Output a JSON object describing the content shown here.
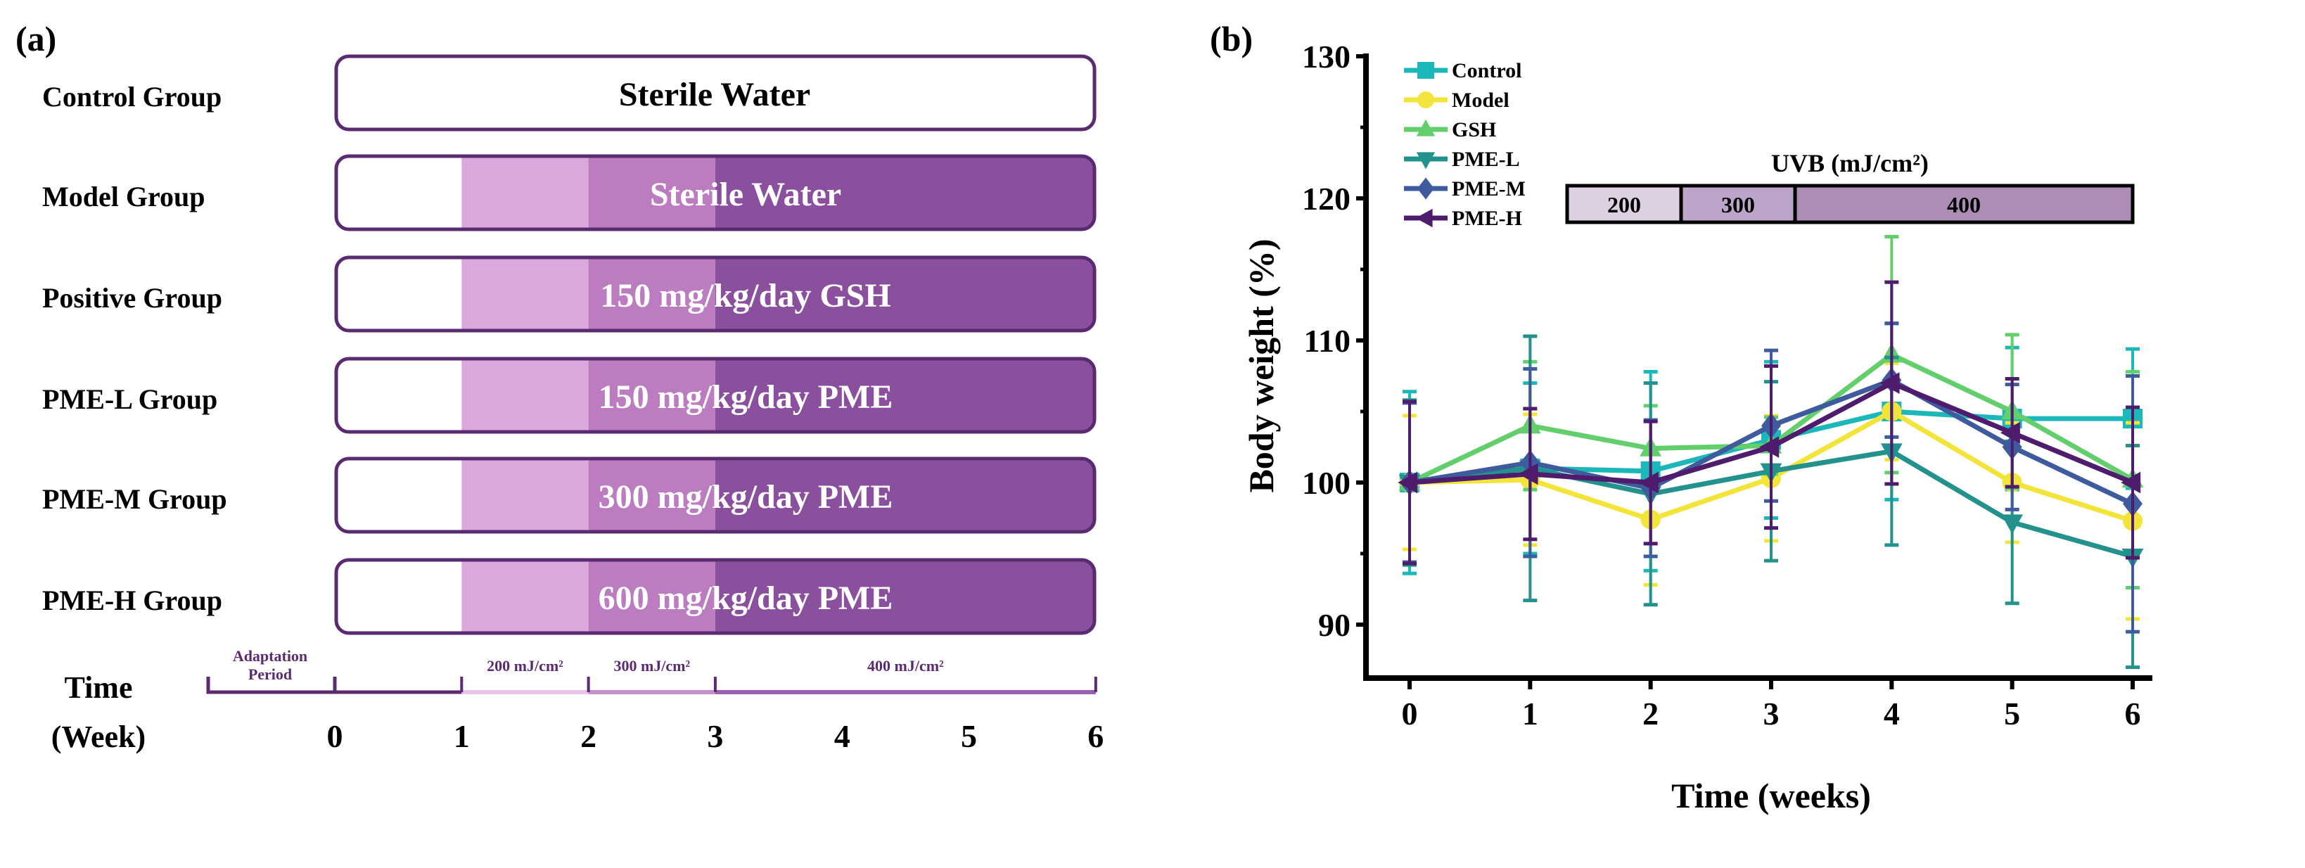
{
  "panel_a": {
    "label": "(a)",
    "groups": [
      {
        "name": "Control Group",
        "treatment": "Sterile Water",
        "model": false
      },
      {
        "name": "Model Group",
        "treatment": "Sterile Water",
        "model": true
      },
      {
        "name": "Positive Group",
        "treatment": "150 mg/kg/day GSH",
        "model": true
      },
      {
        "name": "PME-L Group",
        "treatment": "150 mg/kg/day PME",
        "model": true
      },
      {
        "name": "PME-M Group",
        "treatment": "300 mg/kg/day PME",
        "model": true
      },
      {
        "name": "PME-H Group",
        "treatment": "600 mg/kg/day PME",
        "model": true
      }
    ],
    "time_label": "Time",
    "week_label": "(Week)",
    "adaptation_label_1": "Adaptation",
    "adaptation_label_2": "Period",
    "phases": [
      "200 mJ/cm²",
      "300 mJ/cm²",
      "400 mJ/cm²"
    ],
    "weeks": [
      "0",
      "1",
      "2",
      "3",
      "4",
      "5",
      "6"
    ],
    "colors": {
      "light": "#dba8de",
      "mid": "#bb7cc0",
      "dark": "#8a509e",
      "border": "#5b2b72"
    }
  },
  "chart_data": {
    "panel_label": "(b)",
    "type": "line",
    "title": "",
    "xlabel": "Time (weeks)",
    "ylabel": "Body weight (%)",
    "x": [
      0,
      1,
      2,
      3,
      4,
      5,
      6
    ],
    "xticks": [
      "0",
      "1",
      "2",
      "3",
      "4",
      "5",
      "6"
    ],
    "ylim": [
      85,
      130
    ],
    "yticks": [
      90,
      100,
      110,
      120,
      130
    ],
    "legend_position": "top-left",
    "uvb_bar": {
      "title": "UVB (mJ/cm²)",
      "segments": [
        {
          "label": "200",
          "from": 1,
          "to": 2,
          "color": "#ddd0e3"
        },
        {
          "label": "300",
          "from": 2,
          "to": 3,
          "color": "#bca5c9"
        },
        {
          "label": "400",
          "from": 3,
          "to": 6,
          "color": "#ab8db6"
        }
      ]
    },
    "series": [
      {
        "name": "Control",
        "color": "#1bb7b9",
        "marker": "square",
        "values": [
          100,
          101.0,
          100.8,
          103.0,
          105.0,
          104.5,
          104.5
        ],
        "errors": [
          6.4,
          6.0,
          7.0,
          5.5,
          6.2,
          5.0,
          4.9
        ]
      },
      {
        "name": "Model",
        "color": "#f3e43a",
        "marker": "circle",
        "values": [
          100,
          100.2,
          97.4,
          100.3,
          105.0,
          100.0,
          97.3
        ],
        "errors": [
          4.7,
          4.6,
          4.6,
          4.4,
          3.4,
          4.2,
          6.9
        ]
      },
      {
        "name": "GSH",
        "color": "#62cf6c",
        "marker": "triangle-up",
        "values": [
          100,
          104.0,
          102.4,
          102.6,
          109.0,
          105.0,
          100.2
        ],
        "errors": [
          5.8,
          4.5,
          3.0,
          2.0,
          8.3,
          5.4,
          7.6
        ]
      },
      {
        "name": "PME-L",
        "color": "#23918c",
        "marker": "triangle-down",
        "values": [
          100,
          101.0,
          99.2,
          100.8,
          102.2,
          97.2,
          94.8
        ],
        "errors": [
          5.8,
          9.3,
          7.8,
          6.3,
          6.6,
          5.7,
          7.8
        ]
      },
      {
        "name": "PME-M",
        "color": "#3e5b9e",
        "marker": "diamond",
        "values": [
          100,
          101.4,
          99.6,
          104.0,
          107.2,
          102.5,
          98.5
        ],
        "errors": [
          5.6,
          6.6,
          4.8,
          5.3,
          4.0,
          4.4,
          9.0
        ]
      },
      {
        "name": "PME-H",
        "color": "#4e1b6d",
        "marker": "triangle-left",
        "values": [
          100,
          100.6,
          100.0,
          102.5,
          107.0,
          103.5,
          100.0
        ],
        "errors": [
          5.7,
          4.6,
          4.3,
          5.7,
          7.1,
          3.8,
          5.3
        ]
      }
    ]
  }
}
